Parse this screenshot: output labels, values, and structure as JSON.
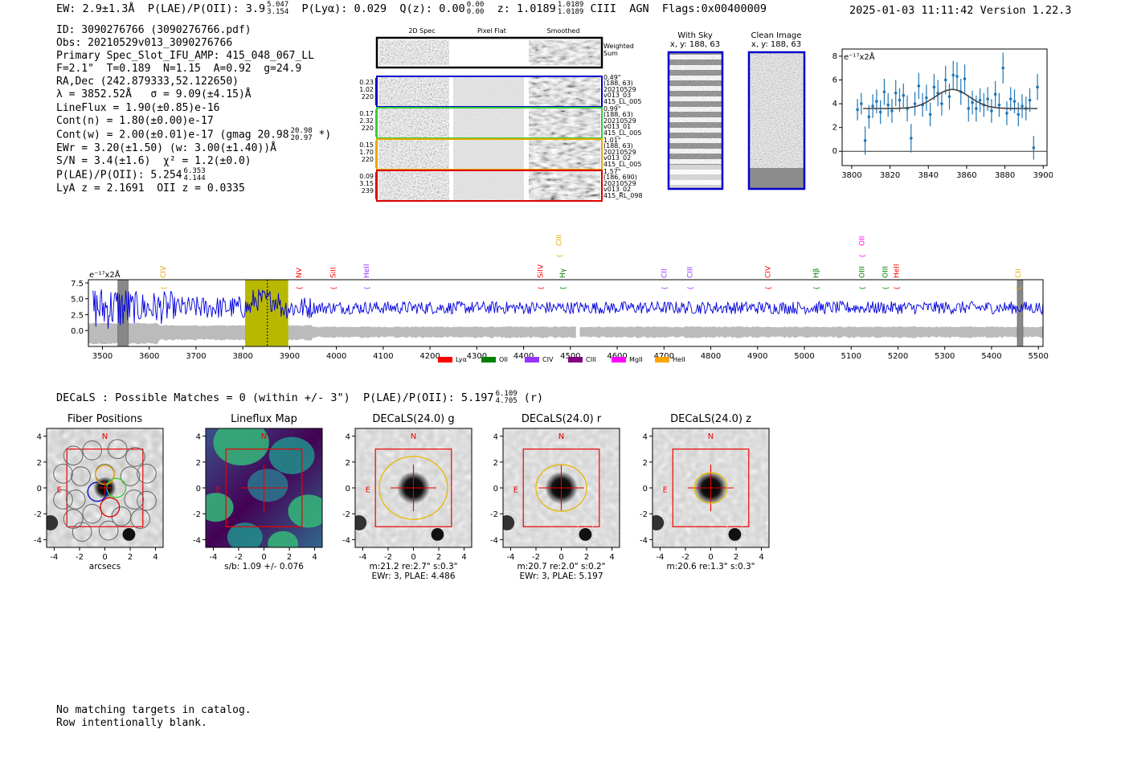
{
  "header": {
    "ew": "EW: 2.9±1.3Å",
    "plae_label": "P(LAE)/P(OII): 3.9",
    "plae_hi": "5.047",
    "plae_lo": "3.154",
    "plya": "P(Lyα): 0.029",
    "qz_label": "Q(z): 0.00",
    "qz_hi": "0.00",
    "qz_lo": "0.00",
    "z_label": "z: 1.0189",
    "z_hi": "1.0189",
    "z_lo": "1.0189",
    "line_id": "CIII",
    "agn": "AGN",
    "flags": "Flags:0x00400009",
    "timestamp": "2025-01-03 11:11:42",
    "version": "Version 1.22.3"
  },
  "info": {
    "id": "ID: 3090276766 (3090276766.pdf)",
    "obs": "Obs: 20210529v013_3090276766",
    "primary": "Primary Spec_Slot_IFU_AMP: 415_048_067_LL",
    "fwhm": "F=2.1\"  T=0.189  N=1.15  A=0.92  g=24.9",
    "radec": "RA,Dec (242.879333,52.122650)",
    "lambda": "λ = 3852.52Å   σ = 9.09(±4.15)Å",
    "lineflux": "LineFlux = 1.90(±0.85)e-16",
    "contn": "Cont(n) = 1.80(±0.00)e-17",
    "contw": "Cont(w) = 2.00(±0.01)e-17 (gmag 20.98",
    "contw_hi": "20.98",
    "contw_lo": "20.97",
    "contw_end": "*)",
    "ewr": "EWr = 3.20(±1.50) (w: 3.00(±1.40))Å",
    "sn": "S/N = 3.4(±1.6)  χ² = 1.2(±0.0)",
    "plae": "P(LAE)/P(OII): 5.254",
    "plae_hi": "6.353",
    "plae_lo": "4.144",
    "lyaz": "LyA z = 2.1691  OII z = 0.0335"
  },
  "fibers": {
    "col_2d": "2D Spec",
    "col_flat": "Pixel Flat",
    "col_smooth": "Smoothed",
    "weighted": "Weighted",
    "sum": "Sum",
    "rows": [
      {
        "weight": "0.23",
        "d1": "1.02",
        "d2": "220",
        "dist": "0.49\"",
        "xy": "(188, 63)",
        "date": "20210529",
        "shot": "v013_03",
        "amp": "415_LL_005",
        "color": "#0000cc"
      },
      {
        "weight": "0.17",
        "d1": "2.32",
        "d2": "220",
        "dist": "0.99\"",
        "xy": "(188, 63)",
        "date": "20210529",
        "shot": "v013_01",
        "amp": "415_LL_005",
        "color": "#33cc33"
      },
      {
        "weight": "0.15",
        "d1": "1.70",
        "d2": "220",
        "dist": "1.01\"",
        "xy": "(188, 63)",
        "date": "20210529",
        "shot": "v013_02",
        "amp": "415_LL_005",
        "color": "#e6a800"
      },
      {
        "weight": "0.09",
        "d1": "3.15",
        "d2": "239",
        "dist": "1.57\"",
        "xy": "(186, 690)",
        "date": "20210529",
        "shot": "v013_02",
        "amp": "415_RL_098",
        "color": "#dd0000"
      }
    ]
  },
  "cutouts": {
    "with_sky": "With Sky",
    "with_sky_xy": "x, y: 188, 63",
    "clean": "Clean Image",
    "clean_xy": "x, y: 188, 63"
  },
  "colors": {
    "spectrum": "#0000dd",
    "noise": "#bbbbbb",
    "highlight": "#b8b800",
    "fiber_blue": "#0000cc",
    "fit": "#444444",
    "zoom_points": "#1f77b4"
  },
  "zoom_chart": {
    "type": "line",
    "ylabel": "e⁻¹⁷x2Å",
    "xlim": [
      3795,
      3902
    ],
    "ylim": [
      -1.2,
      8.6
    ],
    "xticks": [
      3800,
      3820,
      3840,
      3860,
      3880,
      3900
    ],
    "yticks": [
      0,
      2,
      4,
      6,
      8
    ],
    "x": [
      3803,
      3805,
      3807,
      3809,
      3811,
      3813,
      3815,
      3817,
      3819,
      3821,
      3823,
      3825,
      3827,
      3829,
      3831,
      3833,
      3835,
      3837,
      3839,
      3841,
      3843,
      3845,
      3847,
      3849,
      3851,
      3853,
      3855,
      3857,
      3859,
      3861,
      3863,
      3865,
      3867,
      3869,
      3871,
      3873,
      3875,
      3877,
      3879,
      3881,
      3883,
      3885,
      3887,
      3889,
      3891,
      3893,
      3895,
      3897
    ],
    "y": [
      3.5,
      4.0,
      0.9,
      2.9,
      3.8,
      4.2,
      3.3,
      5.0,
      3.9,
      3.4,
      4.9,
      4.3,
      4.7,
      3.6,
      1.1,
      4.0,
      5.5,
      3.9,
      4.5,
      3.1,
      5.4,
      4.9,
      4.0,
      6.0,
      4.6,
      6.4,
      6.3,
      5.0,
      6.1,
      3.6,
      4.1,
      3.6,
      4.3,
      3.9,
      4.4,
      3.4,
      4.8,
      3.9,
      7.0,
      3.2,
      4.4,
      4.2,
      3.1,
      3.8,
      3.6,
      4.3,
      0.3,
      5.4
    ],
    "err": [
      0.9,
      0.9,
      1.2,
      1.0,
      1.0,
      1.0,
      1.0,
      1.1,
      1.0,
      1.0,
      1.1,
      1.0,
      1.0,
      1.1,
      1.2,
      1.0,
      1.1,
      1.0,
      1.1,
      1.0,
      1.1,
      1.1,
      1.0,
      1.2,
      1.1,
      1.2,
      1.2,
      1.1,
      1.2,
      1.1,
      1.0,
      1.1,
      1.0,
      1.0,
      1.0,
      1.0,
      1.1,
      1.0,
      1.3,
      1.0,
      1.0,
      1.0,
      1.0,
      1.0,
      1.0,
      1.0,
      1.0,
      1.1
    ],
    "fit": {
      "continuum": 3.6,
      "amplitude": 1.6,
      "center": 3852.5,
      "sigma": 9.1,
      "xmin": 3806,
      "xmax": 3897
    }
  },
  "full_spectrum": {
    "type": "line",
    "ylabel": "e⁻¹⁷x2Å",
    "xlim": [
      3470,
      5510
    ],
    "ylim": [
      -2.5,
      8.0
    ],
    "xticks": [
      3500,
      3600,
      3700,
      3800,
      3900,
      4000,
      4100,
      4200,
      4300,
      4400,
      4500,
      4600,
      4700,
      4800,
      4900,
      5000,
      5100,
      5200,
      5300,
      5400,
      5500
    ],
    "yticks": [
      0.0,
      2.5,
      5.0,
      7.5
    ],
    "highlight_range": [
      3805,
      3897
    ],
    "line_center": 3852.5,
    "masked": [
      [
        3533,
        3555
      ],
      [
        5455,
        5467
      ]
    ],
    "noise_gap": [
      4512,
      4520
    ],
    "legend": [
      {
        "name": "Lyα",
        "color": "#ff0000"
      },
      {
        "name": "OII",
        "color": "#008000"
      },
      {
        "name": "CIV",
        "color": "#9933ff"
      },
      {
        "name": "CIII",
        "color": "#800080"
      },
      {
        "name": "MgII",
        "color": "#ff00ff"
      },
      {
        "name": "HeII",
        "color": "#ffa500"
      }
    ],
    "line_labels": [
      {
        "name": "CIV",
        "wave": 3630,
        "color": "#e6a800",
        "row": 0
      },
      {
        "name": "NV",
        "wave": 3920,
        "color": "#ff0000",
        "row": 0
      },
      {
        "name": "SiII",
        "wave": 3993,
        "color": "#ff0000",
        "row": 0
      },
      {
        "name": "HeII",
        "wave": 4064,
        "color": "#9933ff",
        "row": 0
      },
      {
        "name": "SiIV",
        "wave": 4436,
        "color": "#ff0000",
        "row": 0
      },
      {
        "name": "CIII",
        "wave": 4475,
        "color": "#e6a800",
        "row": 2
      },
      {
        "name": "Hγ",
        "wave": 4483,
        "color": "#008000",
        "row": 0
      },
      {
        "name": "CII",
        "wave": 4700,
        "color": "#9933ff",
        "row": 0
      },
      {
        "name": "CIII",
        "wave": 4755,
        "color": "#9933ff",
        "row": 0
      },
      {
        "name": "CIV",
        "wave": 4922,
        "color": "#ff0000",
        "row": 0
      },
      {
        "name": "Hβ",
        "wave": 5025,
        "color": "#008000",
        "row": 0
      },
      {
        "name": "OII",
        "wave": 5123,
        "color": "#ff00ff",
        "row": 2
      },
      {
        "name": "OIII",
        "wave": 5123,
        "color": "#008000",
        "row": 0
      },
      {
        "name": "OIII",
        "wave": 5173,
        "color": "#008000",
        "row": 0
      },
      {
        "name": "HeII",
        "wave": 5197,
        "color": "#ff0000",
        "row": 0
      },
      {
        "name": "CII",
        "wave": 5457,
        "color": "#e6a800",
        "row": 0
      }
    ]
  },
  "decals": {
    "line": "DECaLS : Possible Matches = 0 (within +/- 3\")  P(LAE)/P(OII): 5.197",
    "plae_hi": "6.109",
    "plae_lo": "4.705",
    "band": "(r)",
    "axis_ticks": [
      -4,
      -2,
      0,
      2,
      4
    ],
    "compass_n": "N",
    "compass_e": "E",
    "panels": [
      {
        "title": "Fiber Positions",
        "cap1": "arcsecs",
        "cap2": "",
        "kind": "fibers",
        "ellipse_r": 0
      },
      {
        "title": "Lineflux Map",
        "cap1": "s/b: 1.09 +/- 0.076",
        "cap2": "",
        "kind": "lineflux",
        "ellipse_r": 0
      },
      {
        "title": "DECaLS(24.0) g",
        "cap1": "m:21.2  re:2.7\"  s:0.3\"",
        "cap2": "EWr: 3, PLAE: 4.486",
        "kind": "image",
        "ellipse_r": 2.7
      },
      {
        "title": "DECaLS(24.0) r",
        "cap1": "m:20.7  re:2.0\"  s:0.2\"",
        "cap2": "EWr: 3, PLAE: 5.197",
        "kind": "image",
        "ellipse_r": 2.0
      },
      {
        "title": "DECaLS(24.0) z",
        "cap1": "m:20.6  re:1.3\"  s:0.3\"",
        "cap2": "",
        "kind": "image",
        "ellipse_r": 1.3
      }
    ]
  },
  "notes": {
    "line1": "No matching targets in catalog.",
    "line2": "Row intentionally blank."
  }
}
